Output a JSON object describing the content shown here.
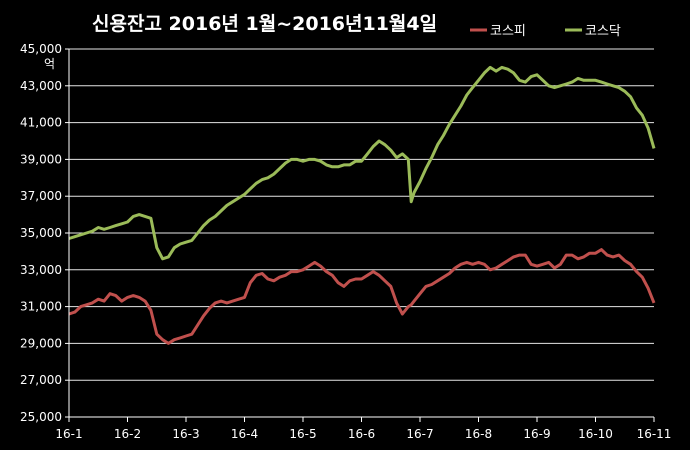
{
  "chart_data": {
    "type": "line",
    "title": "신용잔고  2016년 1월~2016년11월4일",
    "unit_label": "억",
    "ylim": [
      25000,
      45000
    ],
    "yticks": [
      "25,000",
      "27,000",
      "29,000",
      "31,000",
      "33,000",
      "35,000",
      "37,000",
      "39,000",
      "41,000",
      "43,000",
      "45,000"
    ],
    "categories": [
      "16-1",
      "16-2",
      "16-3",
      "16-4",
      "16-5",
      "16-6",
      "16-7",
      "16-8",
      "16-9",
      "16-10",
      "16-11"
    ],
    "grid": true,
    "legend_position": "top-right",
    "series": [
      {
        "name": "코스피",
        "color": "#c0504d",
        "x": [
          0,
          0.1,
          0.2,
          0.3,
          0.4,
          0.5,
          0.6,
          0.7,
          0.8,
          0.9,
          1.0,
          1.1,
          1.2,
          1.3,
          1.4,
          1.5,
          1.6,
          1.7,
          1.8,
          1.9,
          2.0,
          2.1,
          2.2,
          2.3,
          2.4,
          2.5,
          2.6,
          2.7,
          2.8,
          2.9,
          3.0,
          3.1,
          3.2,
          3.3,
          3.4,
          3.5,
          3.6,
          3.7,
          3.8,
          3.9,
          4.0,
          4.1,
          4.2,
          4.3,
          4.4,
          4.5,
          4.6,
          4.7,
          4.8,
          4.9,
          5.0,
          5.1,
          5.2,
          5.3,
          5.4,
          5.5,
          5.6,
          5.7,
          5.8,
          5.85,
          5.9,
          6.0,
          6.1,
          6.2,
          6.3,
          6.4,
          6.5,
          6.6,
          6.7,
          6.8,
          6.9,
          7.0,
          7.1,
          7.2,
          7.3,
          7.4,
          7.5,
          7.6,
          7.7,
          7.8,
          7.9,
          8.0,
          8.1,
          8.2,
          8.3,
          8.4,
          8.5,
          8.6,
          8.7,
          8.8,
          8.9,
          9.0,
          9.1,
          9.2,
          9.3,
          9.4,
          9.5,
          9.6,
          9.7,
          9.8,
          9.9,
          10.0
        ],
        "values": [
          30600,
          30700,
          31000,
          31100,
          31200,
          31400,
          31300,
          31700,
          31600,
          31300,
          31500,
          31600,
          31500,
          31300,
          30800,
          29500,
          29200,
          29000,
          29200,
          29300,
          29400,
          29500,
          30000,
          30500,
          30900,
          31200,
          31300,
          31200,
          31300,
          31400,
          31500,
          32300,
          32700,
          32800,
          32500,
          32400,
          32600,
          32700,
          32900,
          32900,
          33000,
          33200,
          33400,
          33200,
          32900,
          32700,
          32300,
          32100,
          32400,
          32500,
          32500,
          32700,
          32900,
          32700,
          32400,
          32100,
          31200,
          30600,
          31000,
          31100,
          31300,
          31700,
          32100,
          32200,
          32400,
          32600,
          32800,
          33100,
          33300,
          33400,
          33300,
          33400,
          33300,
          33000,
          33100,
          33300,
          33500,
          33700,
          33800,
          33800,
          33300,
          33200,
          33300,
          33400,
          33100,
          33300,
          33800,
          33800,
          33600,
          33700,
          33900,
          33900,
          34100,
          33800,
          33700,
          33800,
          33500,
          33300,
          32900,
          32600,
          32000,
          31200
        ]
      },
      {
        "name": "코스닥",
        "color": "#9bbb59",
        "x": [
          0,
          0.1,
          0.2,
          0.3,
          0.4,
          0.5,
          0.6,
          0.7,
          0.8,
          0.9,
          1.0,
          1.1,
          1.2,
          1.3,
          1.4,
          1.5,
          1.6,
          1.7,
          1.8,
          1.9,
          2.0,
          2.1,
          2.2,
          2.3,
          2.4,
          2.5,
          2.6,
          2.7,
          2.8,
          2.9,
          3.0,
          3.1,
          3.2,
          3.3,
          3.4,
          3.5,
          3.6,
          3.7,
          3.8,
          3.9,
          4.0,
          4.1,
          4.2,
          4.3,
          4.4,
          4.5,
          4.6,
          4.7,
          4.8,
          4.9,
          5.0,
          5.1,
          5.2,
          5.3,
          5.4,
          5.5,
          5.6,
          5.7,
          5.8,
          5.85,
          5.9,
          6.0,
          6.1,
          6.2,
          6.3,
          6.4,
          6.5,
          6.6,
          6.7,
          6.8,
          6.9,
          7.0,
          7.1,
          7.2,
          7.3,
          7.4,
          7.5,
          7.6,
          7.7,
          7.8,
          7.9,
          8.0,
          8.1,
          8.2,
          8.3,
          8.4,
          8.5,
          8.6,
          8.7,
          8.8,
          8.9,
          9.0,
          9.1,
          9.2,
          9.3,
          9.4,
          9.5,
          9.6,
          9.7,
          9.8,
          9.9,
          10.0
        ],
        "values": [
          34700,
          34800,
          34900,
          35000,
          35100,
          35300,
          35200,
          35300,
          35400,
          35500,
          35600,
          35900,
          36000,
          35900,
          35800,
          34200,
          33600,
          33700,
          34200,
          34400,
          34500,
          34600,
          35000,
          35400,
          35700,
          35900,
          36200,
          36500,
          36700,
          36900,
          37100,
          37400,
          37700,
          37900,
          38000,
          38200,
          38500,
          38800,
          39000,
          39000,
          38900,
          39000,
          39000,
          38900,
          38700,
          38600,
          38600,
          38700,
          38700,
          38900,
          38900,
          39300,
          39700,
          40000,
          39800,
          39500,
          39100,
          39300,
          39000,
          36700,
          37200,
          37800,
          38500,
          39100,
          39800,
          40300,
          40900,
          41400,
          41900,
          42500,
          42900,
          43300,
          43700,
          44000,
          43800,
          44000,
          43900,
          43700,
          43300,
          43200,
          43500,
          43600,
          43300,
          43000,
          42900,
          43000,
          43100,
          43200,
          43400,
          43300,
          43300,
          43300,
          43200,
          43100,
          43000,
          42900,
          42700,
          42400,
          41800,
          41400,
          40700,
          39600
        ]
      }
    ]
  }
}
